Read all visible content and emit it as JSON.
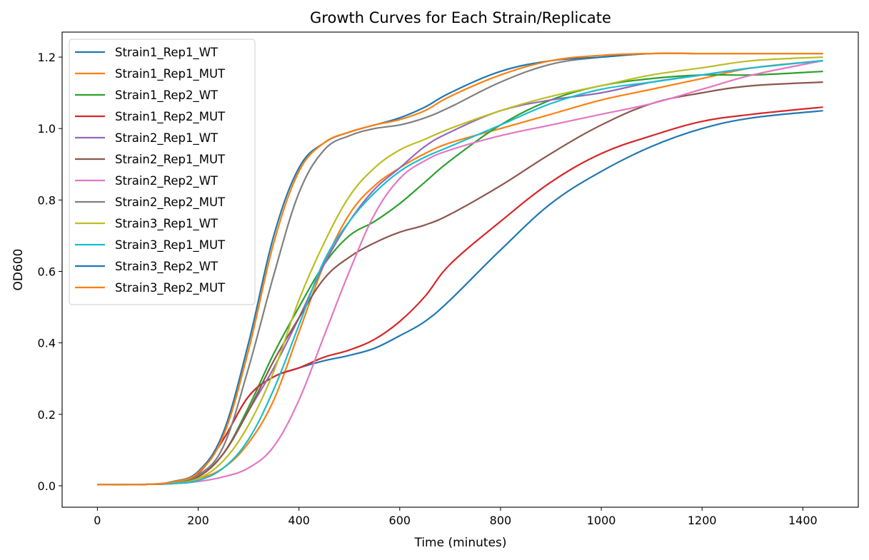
{
  "chart_data": {
    "type": "line",
    "title": "Growth Curves for Each Strain/Replicate",
    "xlabel": "Time (minutes)",
    "ylabel": "OD600",
    "xlim": [
      -70,
      1510
    ],
    "ylim": [
      -0.06,
      1.27
    ],
    "xticks": [
      0,
      200,
      400,
      600,
      800,
      1000,
      1200,
      1400
    ],
    "yticks": [
      "0.0",
      "0.2",
      "0.4",
      "0.6",
      "0.8",
      "1.0",
      "1.2"
    ],
    "grid": false,
    "legend_position": "upper-left",
    "x": [
      0,
      100,
      150,
      200,
      250,
      300,
      350,
      400,
      450,
      500,
      550,
      600,
      650,
      700,
      800,
      900,
      1000,
      1100,
      1200,
      1300,
      1440
    ],
    "series": [
      {
        "name": "Strain1_Rep1_WT",
        "color": "#1f77b4",
        "values": [
          0.003,
          0.004,
          0.01,
          0.035,
          0.13,
          0.25,
          0.305,
          0.33,
          0.35,
          0.365,
          0.385,
          0.42,
          0.46,
          0.52,
          0.66,
          0.79,
          0.88,
          0.95,
          1.0,
          1.03,
          1.05
        ]
      },
      {
        "name": "Strain1_Rep1_MUT",
        "color": "#ff7f0e",
        "values": [
          0.003,
          0.004,
          0.008,
          0.02,
          0.05,
          0.12,
          0.24,
          0.43,
          0.62,
          0.76,
          0.84,
          0.89,
          0.93,
          0.96,
          1.0,
          1.04,
          1.08,
          1.11,
          1.14,
          1.17,
          1.19
        ]
      },
      {
        "name": "Strain1_Rep2_WT",
        "color": "#2ca02c",
        "values": [
          0.003,
          0.004,
          0.008,
          0.025,
          0.09,
          0.22,
          0.37,
          0.5,
          0.62,
          0.7,
          0.74,
          0.79,
          0.85,
          0.91,
          1.01,
          1.08,
          1.12,
          1.14,
          1.15,
          1.15,
          1.16
        ]
      },
      {
        "name": "Strain1_Rep2_MUT",
        "color": "#d62728",
        "values": [
          0.003,
          0.004,
          0.01,
          0.035,
          0.13,
          0.25,
          0.305,
          0.33,
          0.36,
          0.38,
          0.41,
          0.46,
          0.53,
          0.62,
          0.74,
          0.85,
          0.93,
          0.98,
          1.02,
          1.04,
          1.06
        ]
      },
      {
        "name": "Strain2_Rep1_WT",
        "color": "#9467bd",
        "values": [
          0.003,
          0.004,
          0.008,
          0.025,
          0.09,
          0.21,
          0.33,
          0.47,
          0.62,
          0.74,
          0.83,
          0.89,
          0.95,
          0.99,
          1.05,
          1.08,
          1.1,
          1.13,
          1.15,
          1.17,
          1.19
        ]
      },
      {
        "name": "Strain2_Rep1_MUT",
        "color": "#8c564b",
        "values": [
          0.003,
          0.004,
          0.008,
          0.025,
          0.09,
          0.21,
          0.35,
          0.47,
          0.58,
          0.64,
          0.68,
          0.71,
          0.73,
          0.76,
          0.84,
          0.93,
          1.01,
          1.07,
          1.1,
          1.12,
          1.13
        ]
      },
      {
        "name": "Strain2_Rep2_WT",
        "color": "#e377c2",
        "values": [
          0.003,
          0.004,
          0.006,
          0.012,
          0.025,
          0.05,
          0.11,
          0.24,
          0.42,
          0.6,
          0.76,
          0.86,
          0.91,
          0.94,
          0.98,
          1.01,
          1.04,
          1.07,
          1.11,
          1.15,
          1.19
        ]
      },
      {
        "name": "Strain2_Rep2_MUT",
        "color": "#7f7f7f",
        "values": [
          0.003,
          0.004,
          0.01,
          0.03,
          0.11,
          0.33,
          0.59,
          0.82,
          0.94,
          0.98,
          1.0,
          1.01,
          1.03,
          1.06,
          1.13,
          1.18,
          1.2,
          1.21,
          1.21,
          1.21,
          1.21
        ]
      },
      {
        "name": "Strain3_Rep1_WT",
        "color": "#bcbd22",
        "values": [
          0.003,
          0.004,
          0.007,
          0.02,
          0.07,
          0.17,
          0.32,
          0.52,
          0.68,
          0.81,
          0.89,
          0.94,
          0.97,
          1.0,
          1.05,
          1.09,
          1.12,
          1.15,
          1.17,
          1.19,
          1.2
        ]
      },
      {
        "name": "Strain3_Rep1_MUT",
        "color": "#17becf",
        "values": [
          0.003,
          0.004,
          0.006,
          0.015,
          0.05,
          0.13,
          0.27,
          0.45,
          0.63,
          0.74,
          0.82,
          0.88,
          0.92,
          0.95,
          1.01,
          1.07,
          1.11,
          1.13,
          1.15,
          1.17,
          1.19
        ]
      },
      {
        "name": "Strain3_Rep2_WT",
        "color": "#1f77b4",
        "values": [
          0.003,
          0.004,
          0.012,
          0.04,
          0.15,
          0.4,
          0.7,
          0.89,
          0.96,
          0.99,
          1.01,
          1.03,
          1.06,
          1.1,
          1.16,
          1.19,
          1.2,
          1.21,
          1.21,
          1.21,
          1.21
        ]
      },
      {
        "name": "Strain3_Rep2_MUT",
        "color": "#ff7f0e",
        "values": [
          0.003,
          0.004,
          0.011,
          0.037,
          0.14,
          0.38,
          0.68,
          0.88,
          0.96,
          0.99,
          1.01,
          1.025,
          1.05,
          1.09,
          1.15,
          1.19,
          1.205,
          1.21,
          1.21,
          1.21,
          1.21
        ]
      }
    ]
  }
}
